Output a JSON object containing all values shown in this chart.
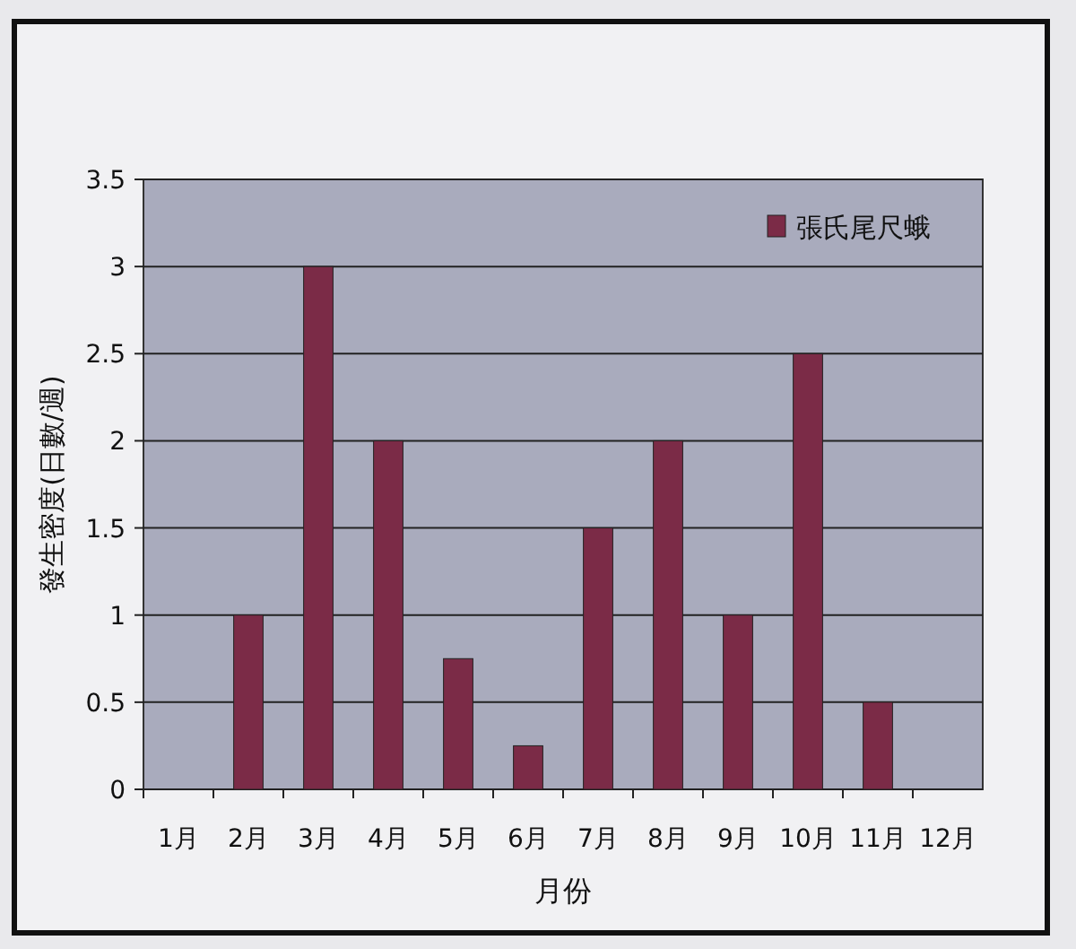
{
  "chart_data": {
    "type": "bar",
    "xlabel": "月份",
    "ylabel": "發生密度(日數/週)",
    "categories": [
      "1月",
      "2月",
      "3月",
      "4月",
      "5月",
      "6月",
      "7月",
      "8月",
      "9月",
      "10月",
      "11月",
      "12月"
    ],
    "series": [
      {
        "name": "張氏尾尺蛾",
        "color": "#7b2b47",
        "values": [
          0,
          1,
          3,
          2,
          0.75,
          0.25,
          1.5,
          2,
          1,
          2.5,
          0.5,
          0
        ]
      }
    ],
    "ylim": [
      0,
      3.5
    ],
    "yticks": [
      0,
      0.5,
      1,
      1.5,
      2,
      2.5,
      3,
      3.5
    ],
    "grid": "y",
    "legend": "top right"
  }
}
